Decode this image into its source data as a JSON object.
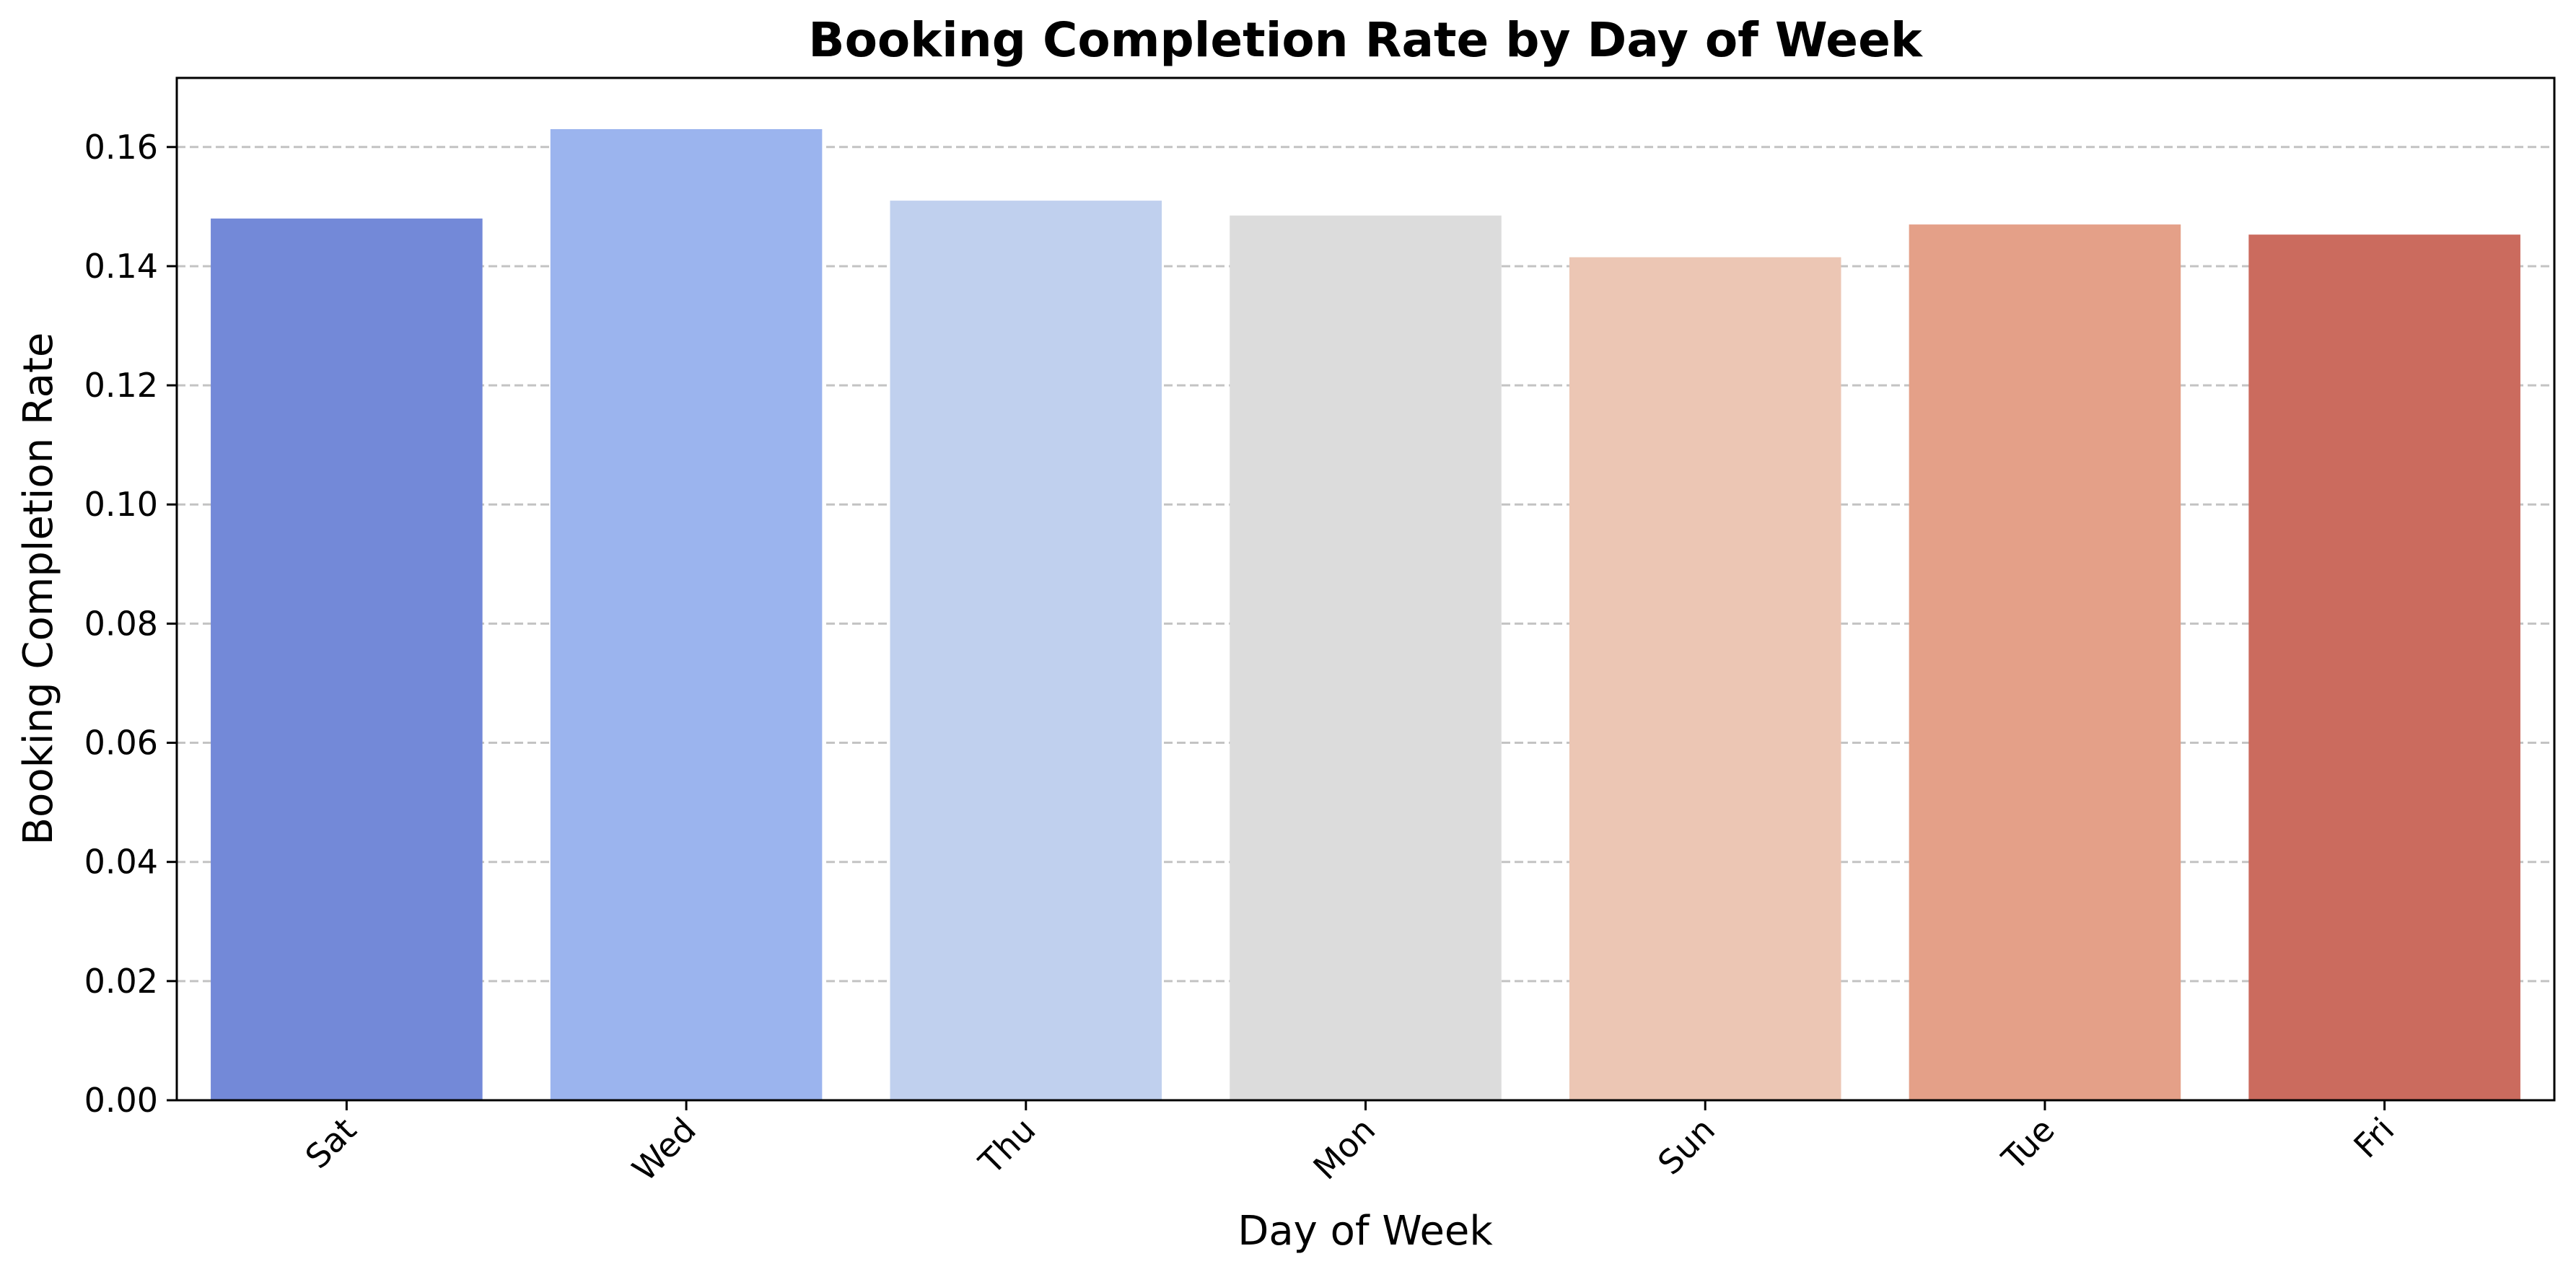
{
  "chart_data": {
    "type": "bar",
    "title": "Booking Completion Rate by Day of Week",
    "xlabel": "Day of Week",
    "ylabel": "Booking Completion Rate",
    "categories": [
      "Sat",
      "Wed",
      "Thu",
      "Mon",
      "Sun",
      "Tue",
      "Fri"
    ],
    "values": [
      0.148,
      0.163,
      0.151,
      0.1485,
      0.1415,
      0.147,
      0.1453
    ],
    "colors": [
      "#7389d8",
      "#9bb4ee",
      "#c0d0ee",
      "#dcdcdc",
      "#ecc6b4",
      "#e4a088",
      "#cb6b5e"
    ],
    "ylim": [
      0,
      0.1716
    ],
    "yticks": [
      "0.00",
      "0.02",
      "0.04",
      "0.06",
      "0.08",
      "0.10",
      "0.12",
      "0.14",
      "0.16"
    ],
    "ytick_values": [
      0,
      0.02,
      0.04,
      0.06,
      0.08,
      0.1,
      0.12,
      0.14,
      0.16
    ],
    "grid": "y-dashed",
    "legend": "none"
  }
}
